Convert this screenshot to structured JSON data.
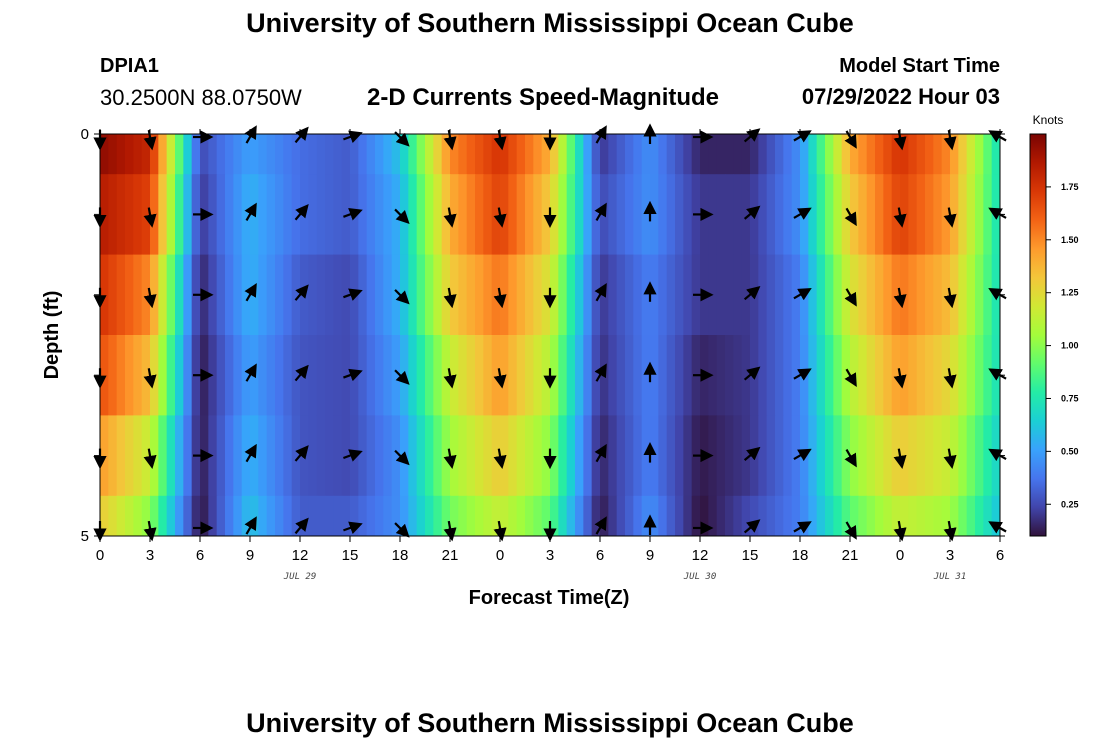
{
  "header": {
    "title": "University of Southern Mississippi Ocean Cube",
    "station_id": "DPIA1",
    "coordinates": "30.2500N  88.0750W",
    "subtitle": "2-D Currents Speed-Magnitude",
    "model_start_label": "Model Start Time",
    "model_start_value": "07/29/2022 Hour 03"
  },
  "footer": {
    "title": "University of Southern Mississippi Ocean Cube"
  },
  "chart_data": {
    "type": "heatmap",
    "title": "2-D Currents Speed-Magnitude",
    "xlabel": "Forecast Time(Z)",
    "ylabel": "Depth (ft)",
    "x_tick_labels": [
      "0",
      "3",
      "6",
      "9",
      "12",
      "15",
      "18",
      "21",
      "0",
      "3",
      "6",
      "9",
      "12",
      "15",
      "18",
      "21",
      "0",
      "3",
      "6"
    ],
    "x_ticks_hours": [
      0,
      3,
      6,
      9,
      12,
      15,
      18,
      21,
      24,
      27,
      30,
      33,
      36,
      39,
      42,
      45,
      48,
      51,
      54
    ],
    "xlim_hours": [
      0,
      54
    ],
    "date_labels": [
      {
        "text": "JUL 29",
        "hour": 12
      },
      {
        "text": "JUL 30",
        "hour": 36
      },
      {
        "text": "JUL 31",
        "hour": 51
      }
    ],
    "y_tick_labels": [
      "0",
      "5"
    ],
    "ylim_ft": [
      0,
      5
    ],
    "depth_levels_ft": [
      0,
      1,
      2,
      3,
      4,
      5
    ],
    "colorbar": {
      "unit": "Knots",
      "range": [
        0.1,
        2.0
      ],
      "tick_values": [
        0.25,
        0.5,
        0.75,
        1.0,
        1.25,
        1.5,
        1.75
      ],
      "tick_labels": [
        "0.25",
        "0.50",
        "0.75",
        "1.00",
        "1.25",
        "1.50",
        "1.75"
      ],
      "colors": [
        "#30123b",
        "#4145ab",
        "#4675ed",
        "#39a2fc",
        "#1bcfd4",
        "#24eca6",
        "#61fc6c",
        "#a4fc3b",
        "#d1e834",
        "#f3c63a",
        "#fe9b2d",
        "#f36315",
        "#d93806",
        "#b11901",
        "#7a0402"
      ]
    },
    "arrow_columns_hours": [
      0,
      3,
      6,
      9,
      12,
      15,
      18,
      21,
      24,
      27,
      30,
      33,
      36,
      39,
      42,
      45,
      48,
      51,
      54
    ],
    "arrow_directions_deg": [
      180,
      170,
      90,
      30,
      40,
      70,
      135,
      170,
      170,
      180,
      30,
      0,
      90,
      50,
      60,
      150,
      170,
      170,
      300
    ],
    "speed_knots": [
      [
        1.95,
        1.8,
        0.25,
        0.5,
        0.35,
        0.3,
        0.6,
        1.5,
        1.75,
        1.4,
        0.2,
        0.45,
        0.15,
        0.15,
        0.45,
        1.4,
        1.75,
        1.5,
        0.7
      ],
      [
        1.85,
        1.7,
        0.2,
        0.55,
        0.35,
        0.3,
        0.55,
        1.4,
        1.7,
        1.3,
        0.25,
        0.45,
        0.2,
        0.2,
        0.45,
        1.3,
        1.7,
        1.45,
        0.7
      ],
      [
        1.75,
        1.5,
        0.15,
        0.55,
        0.3,
        0.25,
        0.55,
        1.3,
        1.55,
        1.2,
        0.2,
        0.4,
        0.2,
        0.2,
        0.4,
        1.2,
        1.55,
        1.35,
        0.7
      ],
      [
        1.65,
        1.35,
        0.12,
        0.5,
        0.28,
        0.25,
        0.5,
        1.15,
        1.45,
        1.1,
        0.18,
        0.4,
        0.15,
        0.2,
        0.4,
        1.1,
        1.45,
        1.25,
        0.7
      ],
      [
        1.45,
        1.15,
        0.12,
        0.55,
        0.28,
        0.25,
        0.45,
        1.05,
        1.3,
        1.0,
        0.15,
        0.4,
        0.12,
        0.2,
        0.4,
        1.0,
        1.3,
        1.15,
        0.65
      ],
      [
        1.3,
        1.0,
        0.1,
        0.6,
        0.3,
        0.3,
        0.45,
        0.95,
        1.15,
        0.9,
        0.12,
        0.45,
        0.1,
        0.25,
        0.4,
        0.9,
        1.15,
        1.05,
        0.6
      ]
    ]
  }
}
